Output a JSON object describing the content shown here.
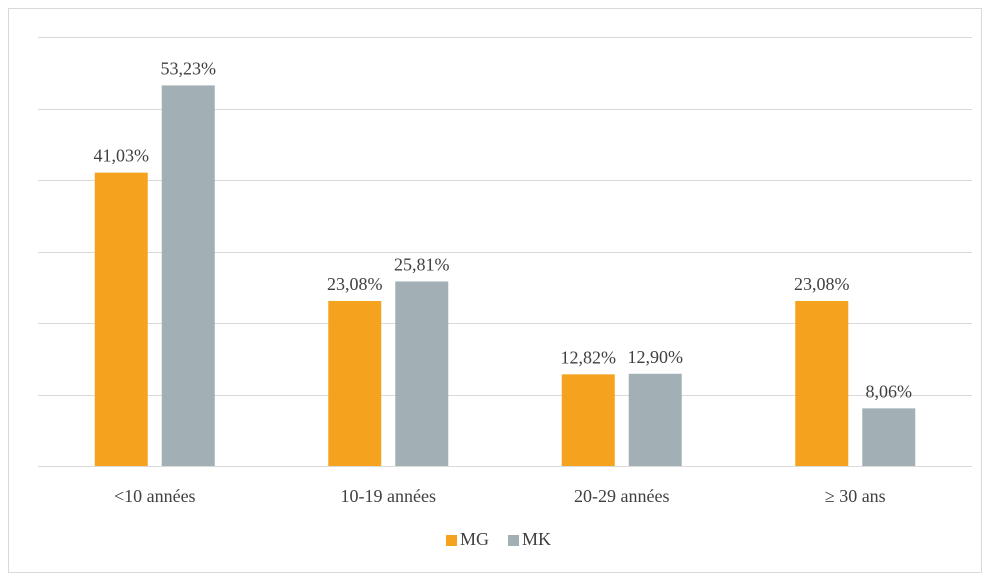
{
  "chart_data": {
    "type": "bar",
    "categories": [
      "<10 années",
      "10-19 années",
      "20-29 années",
      "≥ 30 ans"
    ],
    "series": [
      {
        "name": "MG",
        "color": "#f5a21e",
        "values": [
          41.03,
          23.08,
          12.82,
          23.08
        ],
        "labels": [
          "41,03%",
          "23,08%",
          "12,82%",
          "23,08%"
        ]
      },
      {
        "name": "MK",
        "color": "#a2b0b5",
        "values": [
          53.23,
          25.81,
          12.9,
          8.06
        ],
        "labels": [
          "53,23%",
          "25,81%",
          "12,90%",
          "8,06%"
        ]
      }
    ],
    "ylim": [
      0,
      60
    ],
    "yticks": [
      0,
      10,
      20,
      30,
      40,
      50,
      60
    ],
    "grid": true,
    "legend_position": "bottom"
  }
}
